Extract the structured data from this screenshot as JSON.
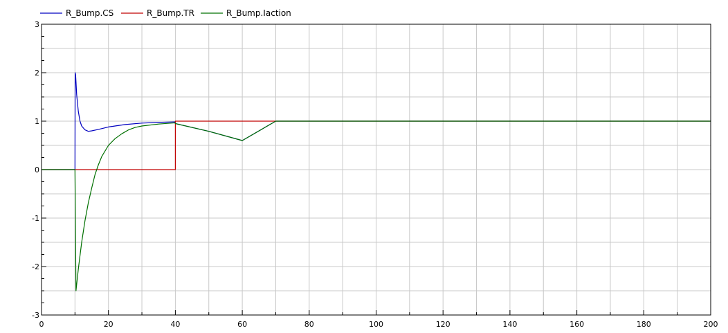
{
  "chart_data": {
    "type": "line",
    "title": "",
    "xlabel": "",
    "ylabel": "",
    "xlim": [
      0,
      200
    ],
    "ylim": [
      -3,
      3
    ],
    "grid": true,
    "legend_position": "top-left",
    "x_ticks": [
      0,
      20,
      40,
      60,
      80,
      100,
      120,
      140,
      160,
      180,
      200
    ],
    "y_ticks": [
      -3,
      -2,
      -1,
      0,
      1,
      2,
      3
    ],
    "series": [
      {
        "name": "R_Bump.CS",
        "color": "#0000c0",
        "points": [
          [
            0,
            0
          ],
          [
            9.9,
            0
          ],
          [
            10,
            0
          ],
          [
            10.05,
            2.0
          ],
          [
            10.2,
            1.95
          ],
          [
            10.5,
            1.55
          ],
          [
            11,
            1.2
          ],
          [
            11.5,
            1.0
          ],
          [
            12,
            0.9
          ],
          [
            13,
            0.82
          ],
          [
            14,
            0.79
          ],
          [
            15,
            0.8
          ],
          [
            17,
            0.83
          ],
          [
            20,
            0.88
          ],
          [
            25,
            0.93
          ],
          [
            30,
            0.96
          ],
          [
            35,
            0.975
          ],
          [
            39.9,
            0.985
          ],
          [
            40,
            0.95
          ],
          [
            50,
            0.79
          ],
          [
            60,
            0.6
          ],
          [
            70,
            1.0
          ],
          [
            200,
            1.0
          ]
        ]
      },
      {
        "name": "R_Bump.TR",
        "color": "#c00000",
        "points": [
          [
            0,
            0
          ],
          [
            10,
            0
          ],
          [
            40,
            0
          ],
          [
            40,
            1.0
          ],
          [
            200,
            1.0
          ]
        ]
      },
      {
        "name": "R_Bump.Iaction",
        "color": "#007000",
        "points": [
          [
            0,
            0
          ],
          [
            10,
            0
          ],
          [
            10.3,
            -2.5
          ],
          [
            11,
            -2.05
          ],
          [
            12,
            -1.5
          ],
          [
            13,
            -1.05
          ],
          [
            14,
            -0.68
          ],
          [
            15,
            -0.38
          ],
          [
            16,
            -0.1
          ],
          [
            17,
            0.1
          ],
          [
            18,
            0.27
          ],
          [
            20,
            0.5
          ],
          [
            22,
            0.64
          ],
          [
            24,
            0.74
          ],
          [
            26,
            0.82
          ],
          [
            28,
            0.87
          ],
          [
            30,
            0.9
          ],
          [
            35,
            0.94
          ],
          [
            39.9,
            0.965
          ],
          [
            40,
            0.95
          ],
          [
            50,
            0.79
          ],
          [
            60,
            0.6
          ],
          [
            70,
            1.0
          ],
          [
            200,
            1.0
          ]
        ]
      }
    ]
  }
}
